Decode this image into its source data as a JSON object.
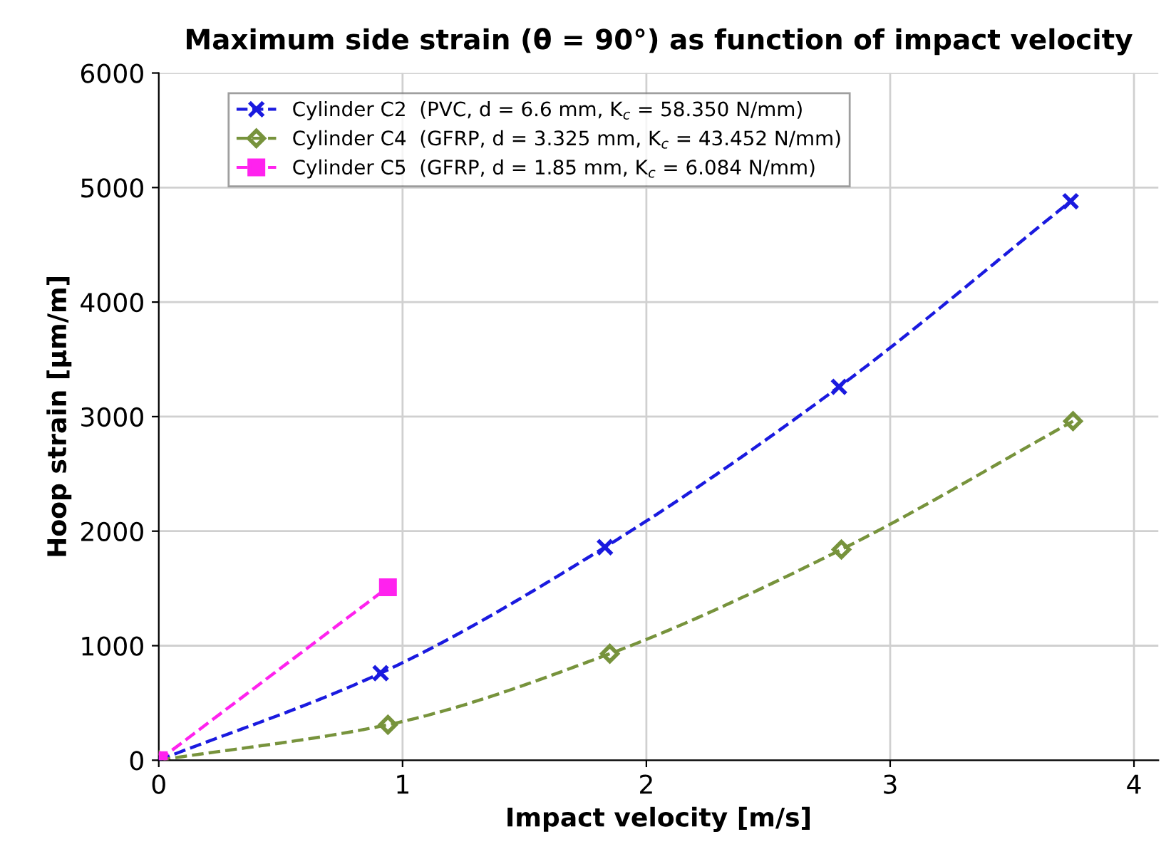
{
  "chart_data": {
    "type": "line",
    "title": "Maximum side strain (θ = 90°) as function of impact velocity",
    "xlabel": "Impact velocity [m/s]",
    "ylabel": "Hoop strain [µm/m]",
    "xlim": [
      0,
      4.1
    ],
    "xticks": [
      0,
      1,
      2,
      3,
      4
    ],
    "ylim": [
      0,
      6000
    ],
    "yticks": [
      0,
      1000,
      2000,
      3000,
      4000,
      5000,
      6000
    ],
    "grid": true,
    "legend": "top left",
    "line_style": "dashed",
    "series": [
      {
        "name": "Cylinder C2  (PVC, d = 6.6 mm, K$_{c}$ = 58.350 N/mm)",
        "color": "#1a1adf",
        "marker": "cross",
        "x": [
          0,
          0.91,
          1.83,
          2.79,
          3.74
        ],
        "values": [
          0,
          760,
          1860,
          3260,
          4880
        ]
      },
      {
        "name": "Cylinder C4  (GFRP, d = 3.325 mm, K$_{c}$ = 43.452 N/mm)",
        "color": "#77933c",
        "marker": "diamond",
        "x": [
          0,
          0.94,
          1.85,
          2.8,
          3.75
        ],
        "values": [
          0,
          310,
          930,
          1840,
          2960
        ]
      },
      {
        "name": "Cylinder C5  (GFRP, d = 1.85 mm, K$_{c}$ = 6.084 N/mm)",
        "color": "#ff22ee",
        "marker": "square",
        "x": [
          0,
          0.94
        ],
        "values": [
          0,
          1510
        ]
      }
    ]
  }
}
